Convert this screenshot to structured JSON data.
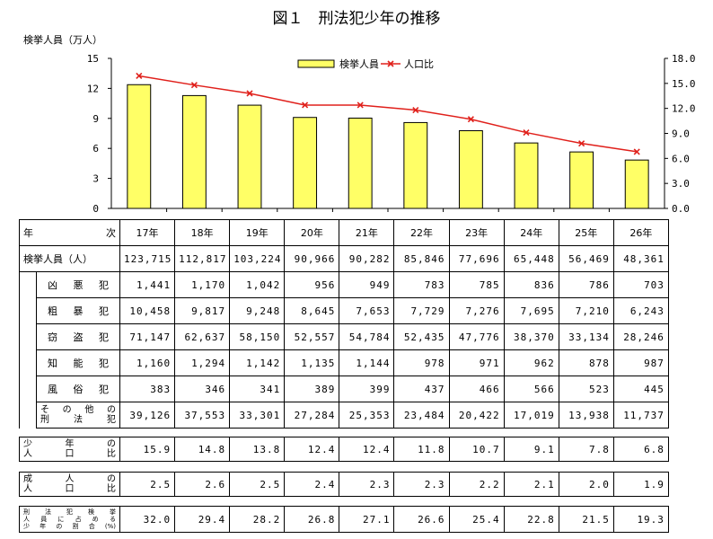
{
  "title": "図１　刑法犯少年の推移",
  "chart_data": {
    "type": "bar+line",
    "title": "図１　刑法犯少年の推移",
    "y_left_label": "検挙人員（万人）",
    "y_left_ticks": [
      "15",
      "12",
      "9",
      "6",
      "3",
      "0"
    ],
    "y_left_range": [
      0,
      15
    ],
    "y_right_ticks": [
      "18.0",
      "15.0",
      "12.0",
      "9.0",
      "6.0",
      "3.0",
      "0.0"
    ],
    "y_right_range": [
      0,
      18
    ],
    "categories": [
      "17年",
      "18年",
      "19年",
      "20年",
      "21年",
      "22年",
      "23年",
      "24年",
      "25年",
      "26年"
    ],
    "series": [
      {
        "name": "検挙人員",
        "type": "bar",
        "axis": "left",
        "color": "#ffff66",
        "values": [
          12.3715,
          11.2817,
          10.3224,
          9.0966,
          9.0282,
          8.5846,
          7.7696,
          6.5448,
          5.6469,
          4.8361
        ]
      },
      {
        "name": "人口比",
        "type": "line",
        "axis": "right",
        "color": "#e0201b",
        "values": [
          15.9,
          14.8,
          13.8,
          12.4,
          12.4,
          11.8,
          10.7,
          9.1,
          7.8,
          6.8
        ]
      }
    ],
    "legend_position": "top-center",
    "grid": false
  },
  "table": {
    "header": {
      "label_left": "年",
      "label_right": "次",
      "years": [
        "17年",
        "18年",
        "19年",
        "20年",
        "21年",
        "22年",
        "23年",
        "24年",
        "25年",
        "26年"
      ]
    },
    "total": {
      "label": "検挙人員（人）",
      "values": [
        "123,715",
        "112,817",
        "103,224",
        "90,966",
        "90,282",
        "85,846",
        "77,696",
        "65,448",
        "56,469",
        "48,361"
      ]
    },
    "sub_rows": [
      {
        "label": [
          "凶",
          "悪",
          "犯"
        ],
        "values": [
          "1,441",
          "1,170",
          "1,042",
          "956",
          "949",
          "783",
          "785",
          "836",
          "786",
          "703"
        ]
      },
      {
        "label": [
          "粗",
          "暴",
          "犯"
        ],
        "values": [
          "10,458",
          "9,817",
          "9,248",
          "8,645",
          "7,653",
          "7,729",
          "7,276",
          "7,695",
          "7,210",
          "6,243"
        ]
      },
      {
        "label": [
          "窃",
          "盗",
          "犯"
        ],
        "values": [
          "71,147",
          "62,637",
          "58,150",
          "52,557",
          "54,784",
          "52,435",
          "47,776",
          "38,370",
          "33,134",
          "28,246"
        ]
      },
      {
        "label": [
          "知",
          "能",
          "犯"
        ],
        "values": [
          "1,160",
          "1,294",
          "1,142",
          "1,135",
          "1,144",
          "978",
          "971",
          "962",
          "878",
          "987"
        ]
      },
      {
        "label": [
          "風",
          "俗",
          "犯"
        ],
        "values": [
          "383",
          "346",
          "341",
          "389",
          "399",
          "437",
          "466",
          "566",
          "523",
          "445"
        ]
      }
    ],
    "other": {
      "label_line1": [
        "そ",
        "の",
        "他",
        "の"
      ],
      "label_line2": [
        "刑",
        "法",
        "犯"
      ],
      "values": [
        "39,126",
        "37,553",
        "33,301",
        "27,284",
        "25,353",
        "23,484",
        "20,422",
        "17,019",
        "13,938",
        "11,737"
      ]
    },
    "juvenile_ratio": {
      "label_line1": [
        "少",
        "年",
        "の"
      ],
      "label_line2": [
        "人",
        "口",
        "比"
      ],
      "values": [
        "15.9",
        "14.8",
        "13.8",
        "12.4",
        "12.4",
        "11.8",
        "10.7",
        "9.1",
        "7.8",
        "6.8"
      ]
    },
    "adult_ratio": {
      "label_line1": [
        "成",
        "人",
        "の"
      ],
      "label_line2": [
        "人",
        "口",
        "比"
      ],
      "values": [
        "2.5",
        "2.6",
        "2.5",
        "2.4",
        "2.3",
        "2.3",
        "2.2",
        "2.1",
        "2.0",
        "1.9"
      ]
    },
    "share": {
      "label_line1": [
        "刑",
        "法",
        "犯",
        "検",
        "挙"
      ],
      "label_line2": [
        "人",
        "員",
        "に",
        "占",
        "め",
        "る"
      ],
      "label_line3": [
        "少",
        "年",
        "の",
        "割",
        "合",
        "(%)"
      ],
      "values": [
        "32.0",
        "29.4",
        "28.2",
        "26.8",
        "27.1",
        "26.6",
        "25.4",
        "22.8",
        "21.5",
        "19.3"
      ]
    }
  }
}
